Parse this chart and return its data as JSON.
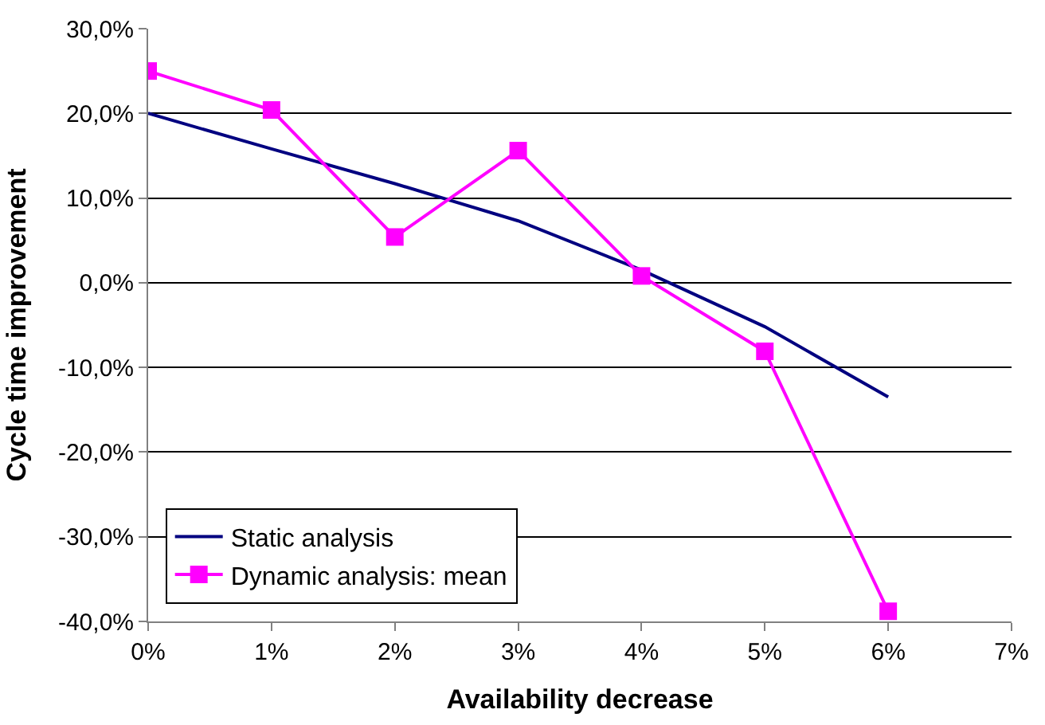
{
  "chart_data": {
    "type": "line",
    "xlabel": "Availability decrease",
    "ylabel": "Cycle time improvement",
    "x": [
      0,
      1,
      2,
      3,
      4,
      5,
      6
    ],
    "series": [
      {
        "name": "Static analysis",
        "color": "#000080",
        "marker": "none",
        "values": [
          20,
          15.8,
          11.7,
          7.3,
          1.5,
          -5.2,
          -13.5
        ]
      },
      {
        "name": "Dynamic analysis: mean",
        "color": "#ff00ff",
        "marker": "square",
        "values": [
          25,
          20.4,
          5.4,
          15.6,
          0.8,
          -8.1,
          -38.8
        ]
      }
    ],
    "xlim": [
      0,
      7
    ],
    "xticks": [
      {
        "value": 0,
        "label": "0%"
      },
      {
        "value": 1,
        "label": "1%"
      },
      {
        "value": 2,
        "label": "2%"
      },
      {
        "value": 3,
        "label": "3%"
      },
      {
        "value": 4,
        "label": "4%"
      },
      {
        "value": 5,
        "label": "5%"
      },
      {
        "value": 6,
        "label": "6%"
      },
      {
        "value": 7,
        "label": "7%"
      }
    ],
    "ylim": [
      -40,
      30
    ],
    "yticks": [
      {
        "value": -40,
        "label": "-40,0%"
      },
      {
        "value": -30,
        "label": "-30,0%"
      },
      {
        "value": -20,
        "label": "-20,0%"
      },
      {
        "value": -10,
        "label": "-10,0%"
      },
      {
        "value": 0,
        "label": "0,0%"
      },
      {
        "value": 10,
        "label": "10,0%"
      },
      {
        "value": 20,
        "label": "20,0%"
      },
      {
        "value": 30,
        "label": "30,0%"
      }
    ],
    "grid": "y",
    "legend": "bottom left"
  }
}
